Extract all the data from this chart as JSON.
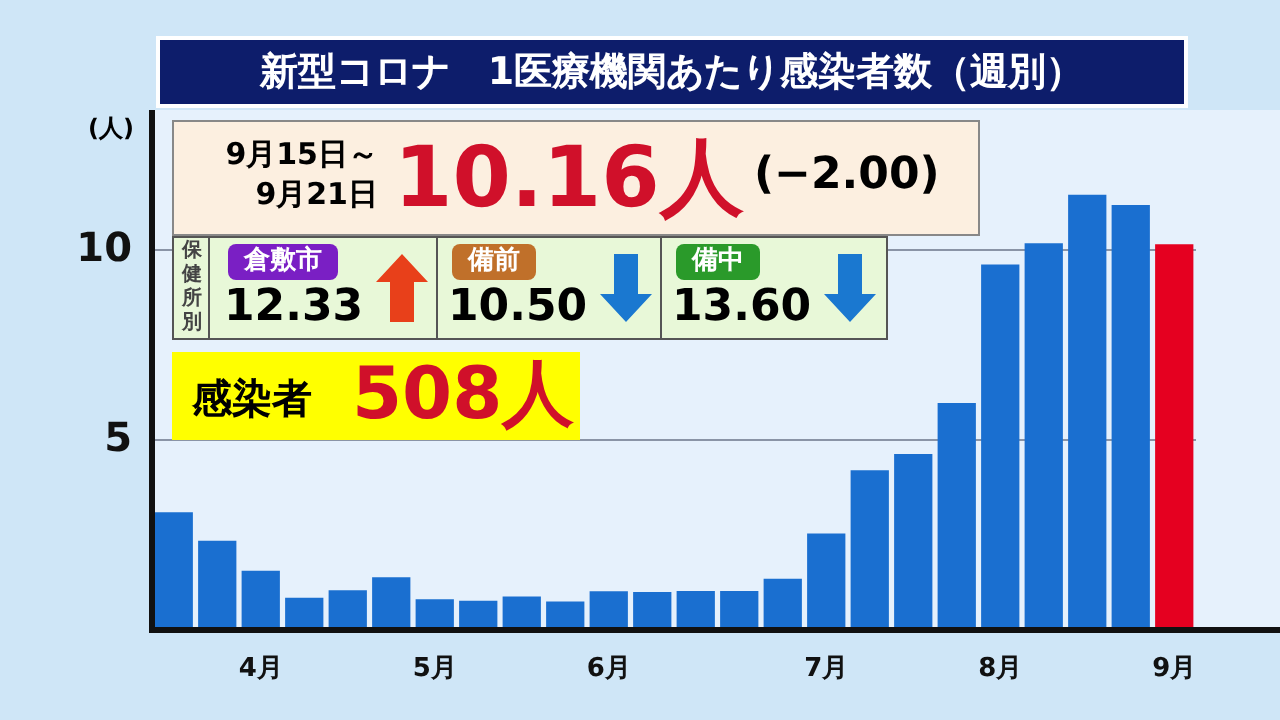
{
  "chart_data": {
    "type": "bar",
    "title": "新型コロナ　1医療機関あたり感染者数（週別）",
    "ylabel": "(人)",
    "categories": [
      null,
      null,
      "4月",
      null,
      null,
      null,
      "5月",
      null,
      null,
      null,
      "6月",
      null,
      null,
      null,
      null,
      "7月",
      null,
      null,
      null,
      "8月",
      null,
      null,
      null,
      "9月"
    ],
    "values": [
      3.1,
      2.35,
      1.56,
      0.85,
      1.05,
      1.39,
      0.81,
      0.77,
      0.88,
      0.75,
      1.02,
      1.0,
      1.03,
      1.03,
      1.35,
      2.54,
      4.21,
      4.64,
      5.98,
      9.63,
      10.19,
      11.47,
      11.2,
      10.16
    ],
    "colors": [
      "#1a6fd0",
      "#1a6fd0",
      "#1a6fd0",
      "#1a6fd0",
      "#1a6fd0",
      "#1a6fd0",
      "#1a6fd0",
      "#1a6fd0",
      "#1a6fd0",
      "#1a6fd0",
      "#1a6fd0",
      "#1a6fd0",
      "#1a6fd0",
      "#1a6fd0",
      "#1a6fd0",
      "#1a6fd0",
      "#1a6fd0",
      "#1a6fd0",
      "#1a6fd0",
      "#1a6fd0",
      "#1a6fd0",
      "#1a6fd0",
      "#1a6fd0",
      "#e50020"
    ],
    "ylim": [
      0,
      13.7
    ],
    "yticks": [
      5,
      10
    ],
    "grid": "y",
    "annotations": [
      "9月15日～9月21日",
      "10.16人",
      "(−2.00)",
      "保健所別",
      "倉敷市",
      "12.33",
      "備前",
      "10.50",
      "備中",
      "13.60",
      "感染者",
      "508人"
    ]
  }
}
